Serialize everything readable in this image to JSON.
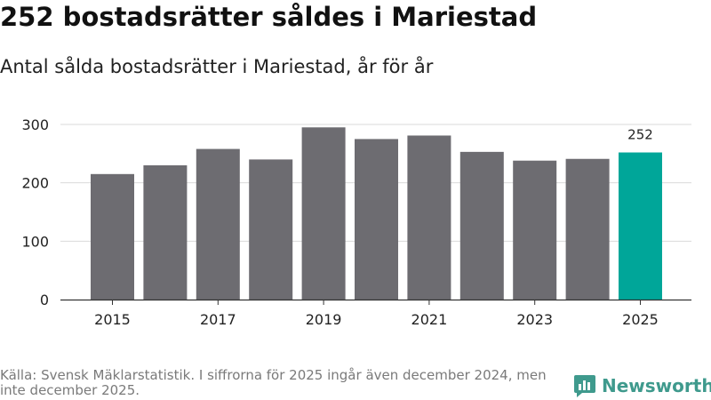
{
  "header": {
    "title": "252 bostadsrätter såldes i Mariestad",
    "subtitle": "Antal sålda bostadsrätter i Mariestad, år för år"
  },
  "footer": {
    "source": "Källa: Svensk Mäklarstatistik. I siffrorna för 2025 ingår även december 2024, men inte december 2025.",
    "brand": "Newsworthy"
  },
  "colors": {
    "bar": "#6d6c71",
    "highlight": "#00a699",
    "brand": "#3f9a8d"
  },
  "chart_data": {
    "type": "bar",
    "title": "252 bostadsrätter såldes i Mariestad",
    "subtitle": "Antal sålda bostadsrätter i Mariestad, år för år",
    "xlabel": "",
    "ylabel": "",
    "categories": [
      "2015",
      "2016",
      "2017",
      "2018",
      "2019",
      "2020",
      "2021",
      "2022",
      "2023",
      "2024",
      "2025"
    ],
    "values": [
      215,
      230,
      258,
      240,
      295,
      275,
      281,
      253,
      238,
      241,
      252
    ],
    "x_tick_labels": [
      "2015",
      "2017",
      "2019",
      "2021",
      "2023",
      "2025"
    ],
    "y_ticks": [
      0,
      100,
      200,
      300
    ],
    "ylim": [
      0,
      300
    ],
    "grid": true,
    "highlight_category": "2025",
    "data_labels": [
      {
        "category": "2025",
        "text": "252"
      }
    ]
  }
}
